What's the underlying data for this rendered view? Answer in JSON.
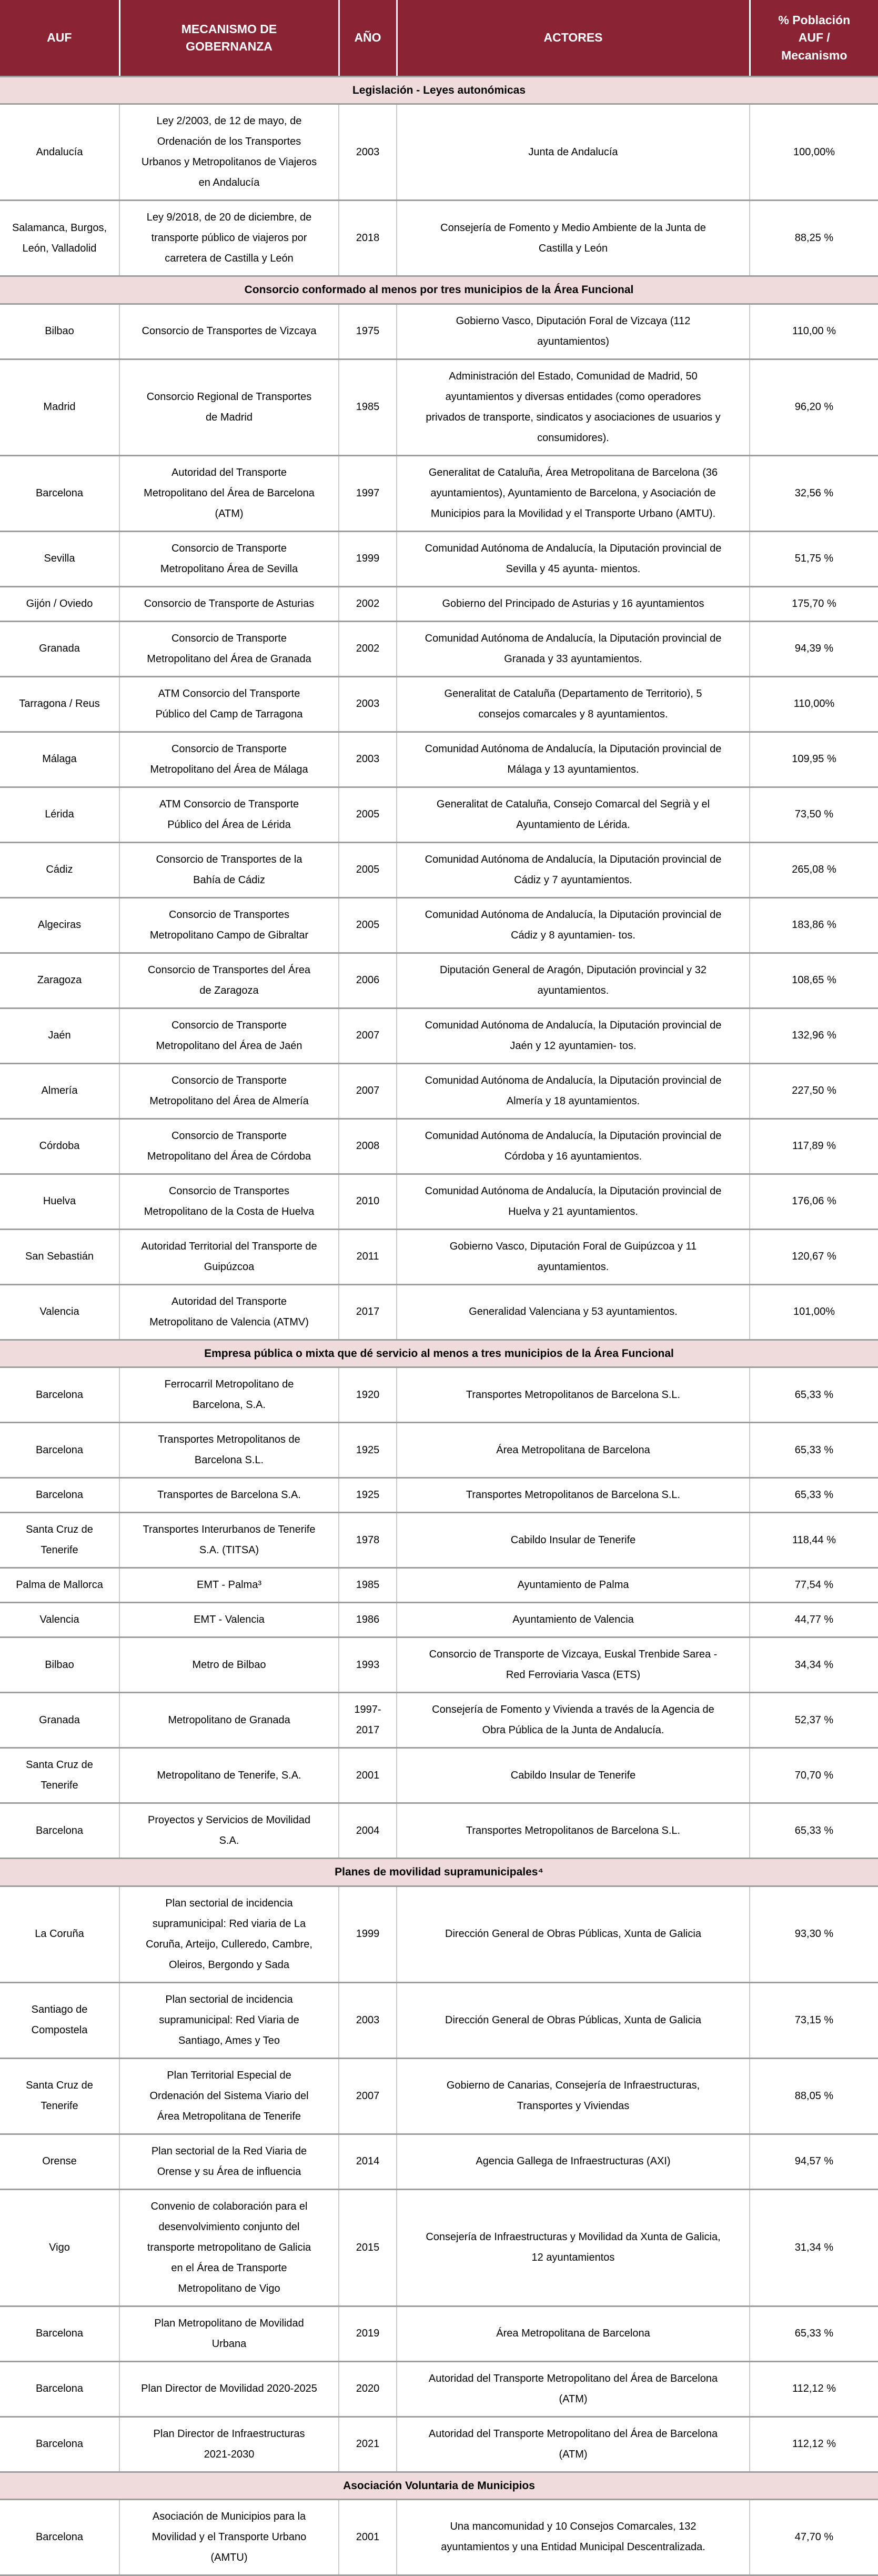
{
  "theme": {
    "header_bg": "#8a2334",
    "header_fg": "#ffffff",
    "section_bg": "#efdbdb",
    "grid_gray": "#9e9e9e",
    "text": "#000000"
  },
  "table": {
    "columns": [
      "AUF",
      "MECANISMO DE\nGOBERNANZA",
      "AÑO",
      "ACTORES",
      "% Población\nAUF /\nMecanismo"
    ],
    "sections": [
      {
        "title": "Legislación - Leyes autonómicas",
        "rows": [
          {
            "auf": "Andalucía",
            "mecanismo": "Ley 2/2003, de 12 de mayo, de Ordenación de los Transportes Urbanos y Metropolitanos de Viajeros en Andalucía",
            "ano": "2003",
            "actores": "Junta de Andalucía",
            "pct": "100,00%"
          },
          {
            "auf": "Salamanca, Burgos, León, Valladolid",
            "mecanismo": "Ley 9/2018, de 20 de diciembre, de transporte público de viajeros por carretera de Castilla y León",
            "ano": "2018",
            "actores": "Consejería de Fomento y Medio Ambiente de la Junta de Castilla y León",
            "pct": "88,25 %"
          }
        ]
      },
      {
        "title": "Consorcio conformado al menos por tres municipios de la Área Funcional",
        "rows": [
          {
            "auf": "Bilbao",
            "mecanismo": "Consorcio de Transportes de Vizcaya",
            "ano": "1975",
            "actores": "Gobierno Vasco, Diputación Foral de Vizcaya (112 ayuntamientos)",
            "pct": "110,00 %"
          },
          {
            "auf": "Madrid",
            "mecanismo": "Consorcio Regional de Transportes de Madrid",
            "ano": "1985",
            "actores": "Administración del Estado, Comunidad de Madrid, 50 ayuntamientos y diversas entidades (como operadores privados de transporte, sindicatos y asociaciones de usuarios y consumidores).",
            "pct": "96,20 %"
          },
          {
            "auf": "Barcelona",
            "mecanismo": "Autoridad del Transporte Metropolitano del Área de Barcelona (ATM)",
            "ano": "1997",
            "actores": "Generalitat de Cataluña, Área Metropolitana de Barcelona (36 ayuntamientos), Ayuntamiento de Barcelona, y Asociación de Municipios para la Movilidad y el Transporte Urbano (AMTU).",
            "pct": "32,56 %"
          },
          {
            "auf": "Sevilla",
            "mecanismo": "Consorcio de Transporte Metropolitano Área de Sevilla",
            "ano": "1999",
            "actores": "Comunidad Autónoma de Andalucía, la Diputación provincial de Sevilla y 45 ayunta- mientos.",
            "pct": "51,75 %"
          },
          {
            "auf": "Gijón / Oviedo",
            "mecanismo": "Consorcio de Transporte de Asturias",
            "ano": "2002",
            "actores": "Gobierno del Principado de Asturias y 16 ayuntamientos",
            "pct": "175,70 %"
          },
          {
            "auf": "Granada",
            "mecanismo": "Consorcio de Transporte Metropolitano del Área de Granada",
            "ano": "2002",
            "actores": "Comunidad Autónoma de Andalucía, la Diputación provincial de Granada y 33 ayuntamientos.",
            "pct": "94,39 %"
          },
          {
            "auf": "Tarragona / Reus",
            "mecanismo": "ATM Consorcio del Transporte Público del Camp de Tarragona",
            "ano": "2003",
            "actores": "Generalitat de Cataluña (Departamento de Territorio), 5 consejos comarcales y 8 ayuntamientos.",
            "pct": "110,00%"
          },
          {
            "auf": "Málaga",
            "mecanismo": "Consorcio de Transporte Metropolitano del Área de Málaga",
            "ano": "2003",
            "actores": "Comunidad Autónoma de Andalucía, la Diputación provincial de Málaga y 13 ayuntamientos.",
            "pct": "109,95 %"
          },
          {
            "auf": "Lérida",
            "mecanismo": "ATM Consorcio de Transporte Público del Área de Lérida",
            "ano": "2005",
            "actores": "Generalitat de Cataluña, Consejo Comarcal del Segrià y el Ayuntamiento de Lérida.",
            "pct": "73,50 %"
          },
          {
            "auf": "Cádiz",
            "mecanismo": "Consorcio de Transportes de la Bahía de Cádiz",
            "ano": "2005",
            "actores": "Comunidad Autónoma de Andalucía, la Diputación provincial de Cádiz y 7 ayuntamientos.",
            "pct": "265,08 %"
          },
          {
            "auf": "Algeciras",
            "mecanismo": "Consorcio de Transportes Metropolitano Campo de Gibraltar",
            "ano": "2005",
            "actores": "Comunidad Autónoma de Andalucía, la Diputación provincial de Cádiz y 8 ayuntamien- tos.",
            "pct": "183,86 %"
          },
          {
            "auf": "Zaragoza",
            "mecanismo": "Consorcio de Transportes del Área de Zaragoza",
            "ano": "2006",
            "actores": "Diputación General de Aragón, Diputación provincial y 32 ayuntamientos.",
            "pct": "108,65 %"
          },
          {
            "auf": "Jaén",
            "mecanismo": "Consorcio de Transporte Metropolitano del Área de Jaén",
            "ano": "2007",
            "actores": "Comunidad Autónoma de Andalucía, la Diputación provincial de Jaén y 12 ayuntamien- tos.",
            "pct": "132,96 %"
          },
          {
            "auf": "Almería",
            "mecanismo": "Consorcio de Transporte Metropolitano del Área de Almería",
            "ano": "2007",
            "actores": "Comunidad Autónoma de Andalucía, la Diputación provincial de Almería y 18 ayuntamientos.",
            "pct": "227,50 %"
          },
          {
            "auf": "Córdoba",
            "mecanismo": "Consorcio de Transporte Metropolitano del Área de Córdoba",
            "ano": "2008",
            "actores": "Comunidad Autónoma de Andalucía, la Diputación provincial de Córdoba y 16 ayuntamientos.",
            "pct": "117,89 %"
          },
          {
            "auf": "Huelva",
            "mecanismo": "Consorcio de Transportes Metropolitano de la Costa de Huelva",
            "ano": "2010",
            "actores": "Comunidad Autónoma de Andalucía, la Diputación provincial de Huelva y 21 ayuntamientos.",
            "pct": "176,06 %"
          },
          {
            "auf": "San Sebastián",
            "mecanismo": "Autoridad Territorial del Transporte de Guipúzcoa",
            "ano": "2011",
            "actores": "Gobierno Vasco, Diputación Foral de Guipúzcoa y 11 ayuntamientos.",
            "pct": "120,67 %"
          },
          {
            "auf": "Valencia",
            "mecanismo": "Autoridad del Transporte Metropolitano de Valencia (ATMV)",
            "ano": "2017",
            "actores": "Generalidad Valenciana y 53 ayuntamientos.",
            "pct": "101,00%"
          }
        ]
      },
      {
        "title": "Empresa pública o mixta que dé servicio al menos a tres municipios de la Área Funcional",
        "rows": [
          {
            "auf": "Barcelona",
            "mecanismo": "Ferrocarril Metropolitano de Barcelona, S.A.",
            "ano": "1920",
            "actores": "Transportes Metropolitanos de Barcelona S.L.",
            "pct": "65,33 %"
          },
          {
            "auf": "Barcelona",
            "mecanismo": "Transportes Metropolitanos de Barcelona S.L.",
            "ano": "1925",
            "actores": "Área Metropolitana de Barcelona",
            "pct": "65,33 %"
          },
          {
            "auf": "Barcelona",
            "mecanismo": "Transportes de Barcelona S.A.",
            "ano": "1925",
            "actores": "Transportes Metropolitanos de Barcelona S.L.",
            "pct": "65,33 %"
          },
          {
            "auf": "Santa Cruz de Tenerife",
            "mecanismo": "Transportes Interurbanos de Tenerife S.A. (TITSA)",
            "ano": "1978",
            "actores": "Cabildo Insular de Tenerife",
            "pct": "118,44 %"
          },
          {
            "auf": "Palma de Mallorca",
            "mecanismo": "EMT - Palma³",
            "ano": "1985",
            "actores": "Ayuntamiento de Palma",
            "pct": "77,54 %"
          },
          {
            "auf": "Valencia",
            "mecanismo": "EMT - Valencia",
            "ano": "1986",
            "actores": "Ayuntamiento de Valencia",
            "pct": "44,77 %"
          },
          {
            "auf": "Bilbao",
            "mecanismo": "Metro de Bilbao",
            "ano": "1993",
            "actores": "Consorcio de Transporte de Vizcaya, Euskal Trenbide Sarea - Red Ferroviaria Vasca (ETS)",
            "pct": "34,34 %"
          },
          {
            "auf": "Granada",
            "mecanismo": "Metropolitano de Granada",
            "ano": "1997-2017",
            "actores": "Consejería de Fomento y Vivienda a través de la Agencia de Obra Pública de la Junta de Andalucía.",
            "pct": "52,37 %"
          },
          {
            "auf": "Santa Cruz de Tenerife",
            "mecanismo": "Metropolitano de Tenerife, S.A.",
            "ano": "2001",
            "actores": "Cabildo Insular de Tenerife",
            "pct": "70,70 %"
          },
          {
            "auf": "Barcelona",
            "mecanismo": "Proyectos y Servicios de Movilidad S.A.",
            "ano": "2004",
            "actores": "Transportes Metropolitanos de Barcelona S.L.",
            "pct": "65,33 %"
          }
        ]
      },
      {
        "title": "Planes de movilidad supramunicipales⁴",
        "rows": [
          {
            "auf": "La Coruña",
            "mecanismo": "Plan sectorial de incidencia supramunicipal: Red viaria de La Coruña, Arteijo, Culleredo, Cambre, Oleiros, Bergondo y Sada",
            "ano": "1999",
            "actores": "Dirección General de Obras Públicas, Xunta de Galicia",
            "pct": "93,30 %"
          },
          {
            "auf": "Santiago de Compostela",
            "mecanismo": "Plan sectorial de incidencia supramunicipal: Red Viaria de Santiago, Ames y Teo",
            "ano": "2003",
            "actores": "Dirección General de Obras Públicas, Xunta de Galicia",
            "pct": "73,15 %"
          },
          {
            "auf": "Santa Cruz de Tenerife",
            "mecanismo": "Plan Territorial Especial de Ordenación del Sistema Viario del Área Metropolitana de Tenerife",
            "ano": "2007",
            "actores": "Gobierno de Canarias, Consejería de Infraestructuras, Transportes y Viviendas",
            "pct": "88,05 %"
          },
          {
            "auf": "Orense",
            "mecanismo": "Plan sectorial de la Red Viaria de Orense y su Área de influencia",
            "ano": "2014",
            "actores": "Agencia Gallega de Infraestructuras (AXI)",
            "pct": "94,57 %"
          },
          {
            "auf": "Vigo",
            "mecanismo": "Convenio de colaboración para el desenvolvimiento conjunto del transporte metropolitano de Galicia en el Área de Transporte Metropolitano de Vigo",
            "ano": "2015",
            "actores": "Consejería de Infraestructuras y Movilidad da Xunta de Galicia, 12 ayuntamientos",
            "pct": "31,34 %"
          },
          {
            "auf": "Barcelona",
            "mecanismo": "Plan Metropolitano de Movilidad Urbana",
            "ano": "2019",
            "actores": "Área Metropolitana de Barcelona",
            "pct": "65,33 %"
          },
          {
            "auf": "Barcelona",
            "mecanismo": "Plan Director de Movilidad 2020-2025",
            "ano": "2020",
            "actores": "Autoridad del Transporte Metropolitano del Área de Barcelona (ATM)",
            "pct": "112,12 %"
          },
          {
            "auf": "Barcelona",
            "mecanismo": "Plan Director de Infraestructuras 2021-2030",
            "ano": "2021",
            "actores": "Autoridad del Transporte Metropolitano del Área de Barcelona (ATM)",
            "pct": "112,12 %"
          }
        ]
      },
      {
        "title": "Asociación Voluntaria de Municipios",
        "rows": [
          {
            "auf": "Barcelona",
            "mecanismo": "Asociación de Municipios para la Movilidad y el Transporte Urbano (AMTU)",
            "ano": "2001",
            "actores": "Una mancomunidad y 10 Consejos Comarcales, 132 ayuntamientos y una Entidad Municipal Descentralizada.",
            "pct": "47,70 %"
          }
        ]
      }
    ]
  }
}
